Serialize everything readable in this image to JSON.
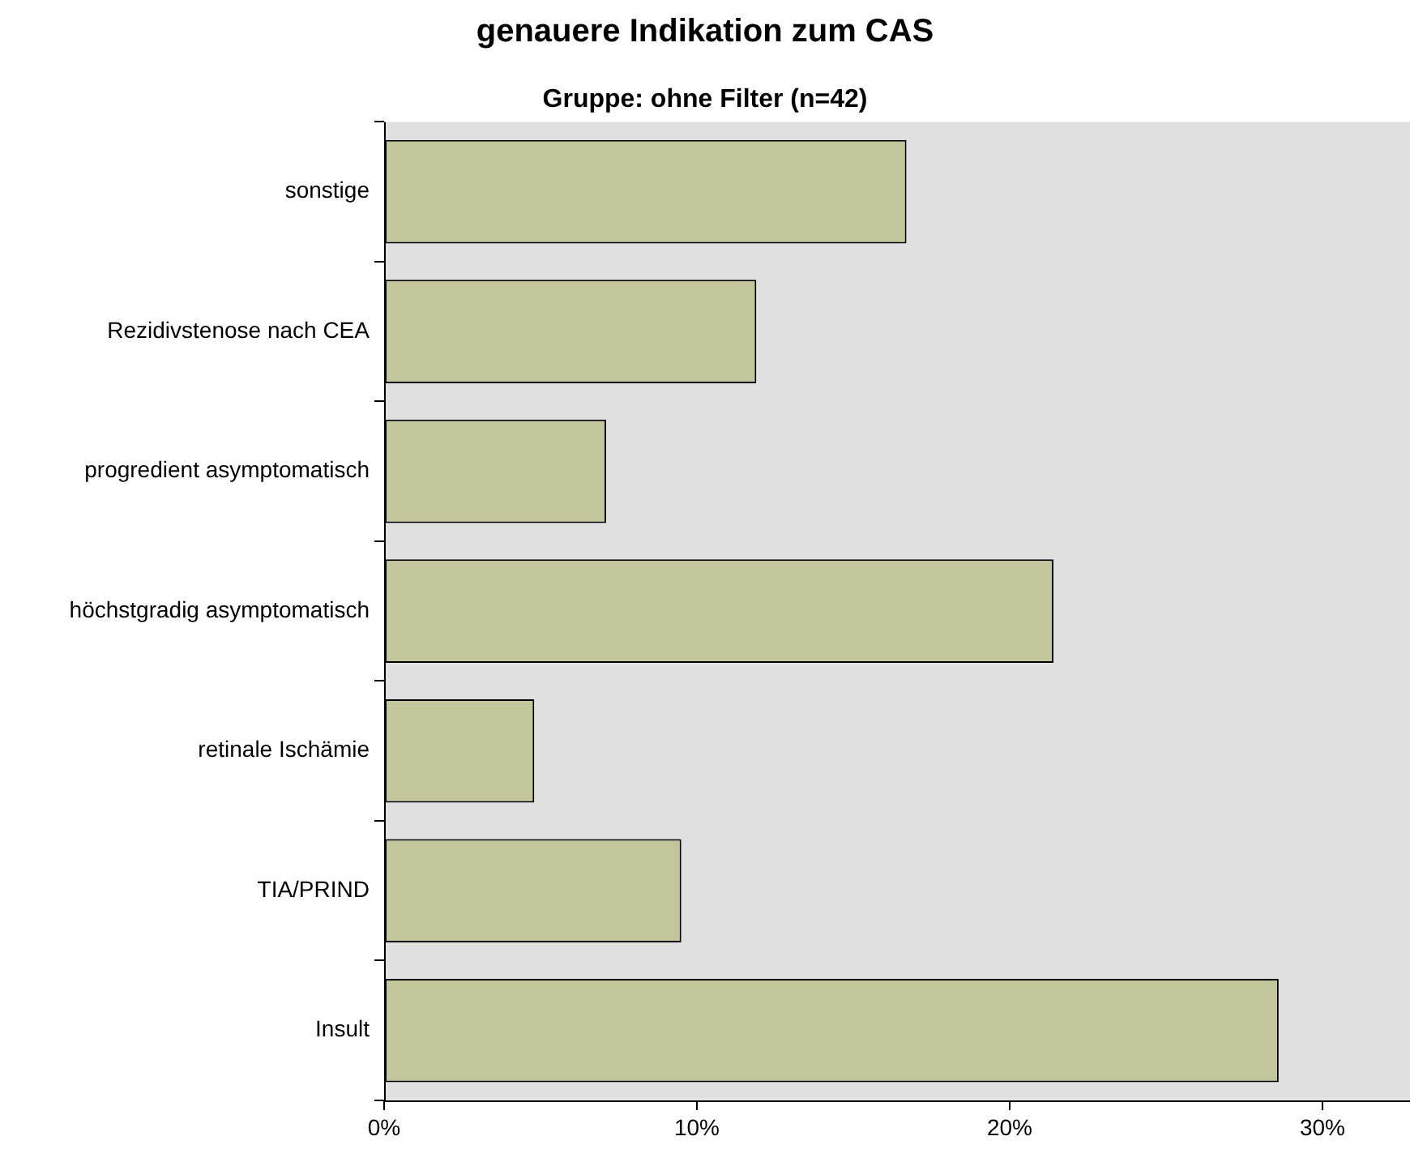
{
  "chart_data": {
    "type": "bar",
    "title": "genauere Indikation zum CAS",
    "subtitle": "Gruppe: ohne Filter (n=42)",
    "orientation": "horizontal",
    "categories": [
      "sonstige",
      "Rezidivstenose nach CEA",
      "progredient asymptomatisch",
      "höchstgradig asymptomatisch",
      "retinale Ischämie",
      "TIA/PRIND",
      "Insult"
    ],
    "values": [
      16.7,
      11.9,
      7.1,
      21.4,
      4.8,
      9.5,
      28.6
    ],
    "color": "#c2c69a",
    "xlim": [
      0,
      32.8
    ],
    "xticks": [
      {
        "value": 0,
        "label": "0%"
      },
      {
        "value": 10,
        "label": "10%"
      },
      {
        "value": 20,
        "label": "20%"
      },
      {
        "value": 30,
        "label": "30%"
      }
    ],
    "grid": false,
    "legend": false
  }
}
